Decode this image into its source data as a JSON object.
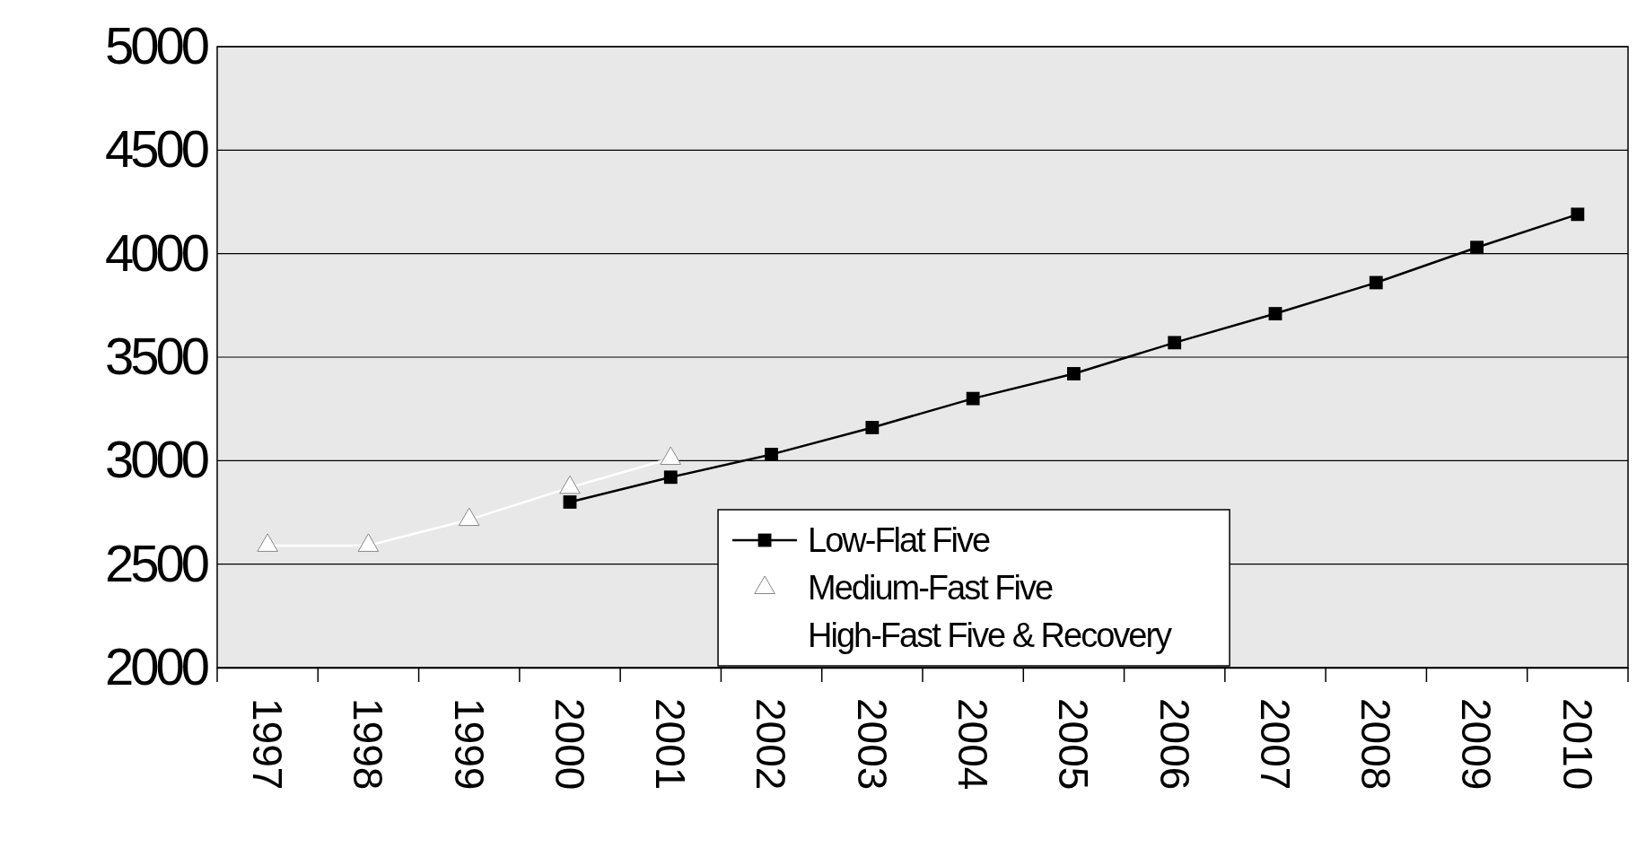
{
  "chart_data": {
    "type": "line",
    "categories": [
      "1997",
      "1998",
      "1999",
      "2000",
      "2001",
      "2002",
      "2003",
      "2004",
      "2005",
      "2006",
      "2007",
      "2008",
      "2009",
      "2010"
    ],
    "series": [
      {
        "name": "Low-Flat Five",
        "color": "#000000",
        "marker": "square",
        "values": [
          null,
          null,
          null,
          2800,
          2920,
          3030,
          3160,
          3300,
          3420,
          3570,
          3710,
          3860,
          4030,
          4190
        ]
      },
      {
        "name": "Medium-Fast Five",
        "color": "#ffffff",
        "marker": "triangle",
        "values": [
          2590,
          2590,
          2715,
          2870,
          3010,
          null,
          null,
          null,
          null,
          null,
          null,
          null,
          null,
          null
        ]
      },
      {
        "name": "High-Fast Five & Recovery",
        "marker": "none",
        "values": [
          null,
          null,
          null,
          null,
          null,
          null,
          null,
          null,
          null,
          null,
          null,
          null,
          null,
          null
        ]
      }
    ],
    "ylim": [
      2000,
      5000
    ],
    "yticks": [
      2000,
      2500,
      3000,
      3500,
      4000,
      4500,
      5000
    ],
    "grid": "y",
    "legend": "bottom"
  }
}
